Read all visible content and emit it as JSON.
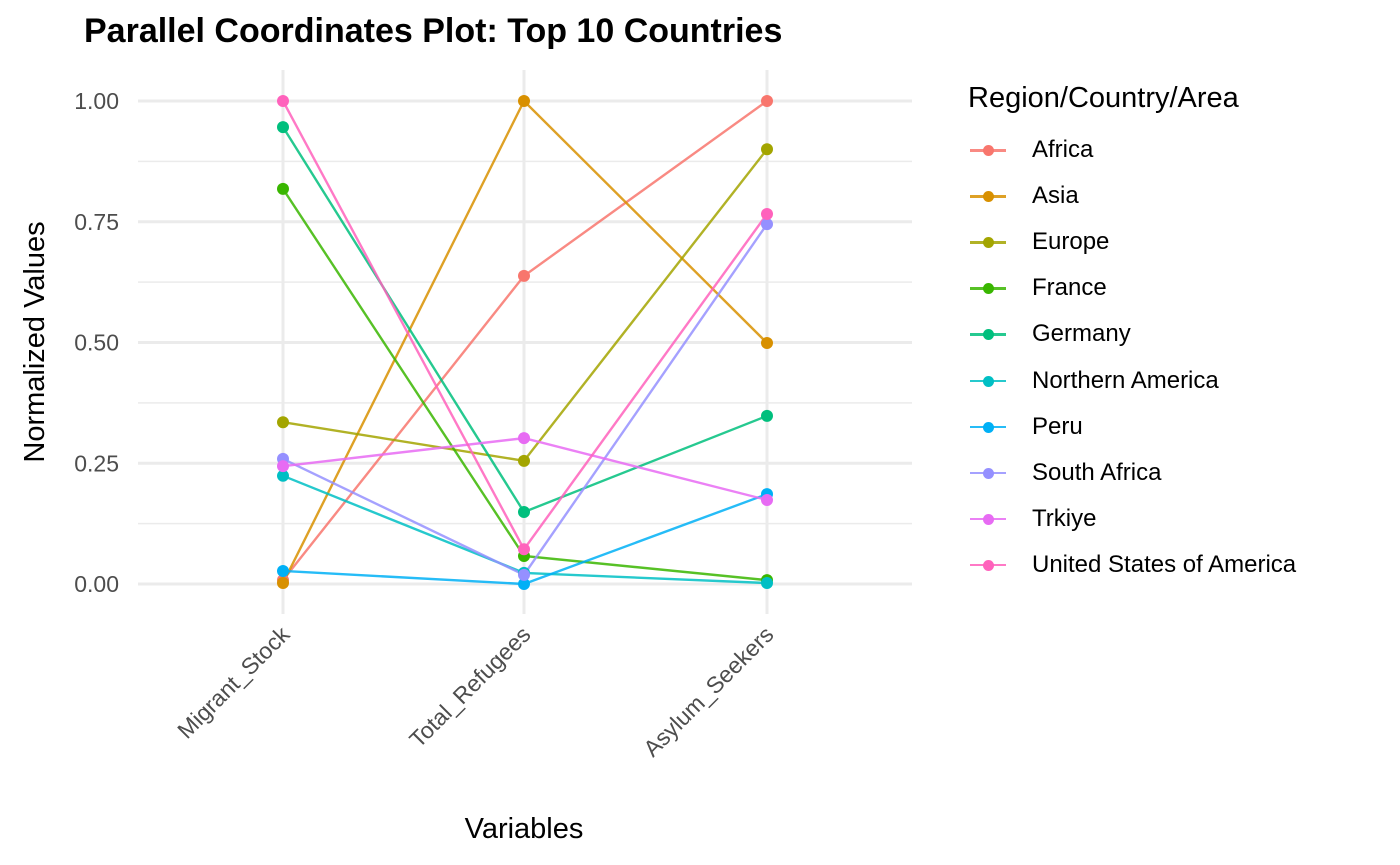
{
  "title": "Parallel Coordinates Plot: Top 10 Countries",
  "legend": {
    "title": "Region/Country/Area",
    "items": [
      {
        "label": "Africa",
        "color": "#F8766D"
      },
      {
        "label": "Asia",
        "color": "#D89000"
      },
      {
        "label": "Europe",
        "color": "#A3A500"
      },
      {
        "label": "France",
        "color": "#39B600"
      },
      {
        "label": "Germany",
        "color": "#00BF7D"
      },
      {
        "label": "Northern America",
        "color": "#00BFC4"
      },
      {
        "label": "Peru",
        "color": "#00B0F6"
      },
      {
        "label": "South Africa",
        "color": "#9590FF"
      },
      {
        "label": "Trkiye",
        "color": "#E76BF3"
      },
      {
        "label": "United States of America",
        "color": "#FF62BC"
      }
    ]
  },
  "chart_data": {
    "type": "line",
    "title": "Parallel Coordinates Plot: Top 10 Countries",
    "xlabel": "Variables",
    "ylabel": "Normalized Values",
    "categories": [
      "Migrant_Stock",
      "Total_Refugees",
      "Asylum_Seekers"
    ],
    "yticks": [
      "0.00",
      "0.25",
      "0.50",
      "0.75",
      "1.00"
    ],
    "ylim": [
      0,
      1
    ],
    "grid": true,
    "legend_position": "right",
    "legend_title": "Region/Country/Area",
    "series": [
      {
        "name": "Africa",
        "color": "#F8766D",
        "values": [
          0.008,
          0.638,
          1.0
        ]
      },
      {
        "name": "Asia",
        "color": "#D89000",
        "values": [
          0.002,
          1.0,
          0.499
        ]
      },
      {
        "name": "Europe",
        "color": "#A3A500",
        "values": [
          0.335,
          0.255,
          0.9
        ]
      },
      {
        "name": "France",
        "color": "#39B600",
        "values": [
          0.818,
          0.058,
          0.008
        ]
      },
      {
        "name": "Germany",
        "color": "#00BF7D",
        "values": [
          0.946,
          0.149,
          0.348
        ]
      },
      {
        "name": "Northern America",
        "color": "#00BFC4",
        "values": [
          0.224,
          0.023,
          0.002
        ]
      },
      {
        "name": "Peru",
        "color": "#00B0F6",
        "values": [
          0.027,
          0.0,
          0.186
        ]
      },
      {
        "name": "South Africa",
        "color": "#9590FF",
        "values": [
          0.259,
          0.019,
          0.745
        ]
      },
      {
        "name": "Trkiye",
        "color": "#E76BF3",
        "values": [
          0.244,
          0.302,
          0.174
        ]
      },
      {
        "name": "United States of America",
        "color": "#FF62BC",
        "values": [
          1.0,
          0.072,
          0.766
        ]
      }
    ]
  }
}
